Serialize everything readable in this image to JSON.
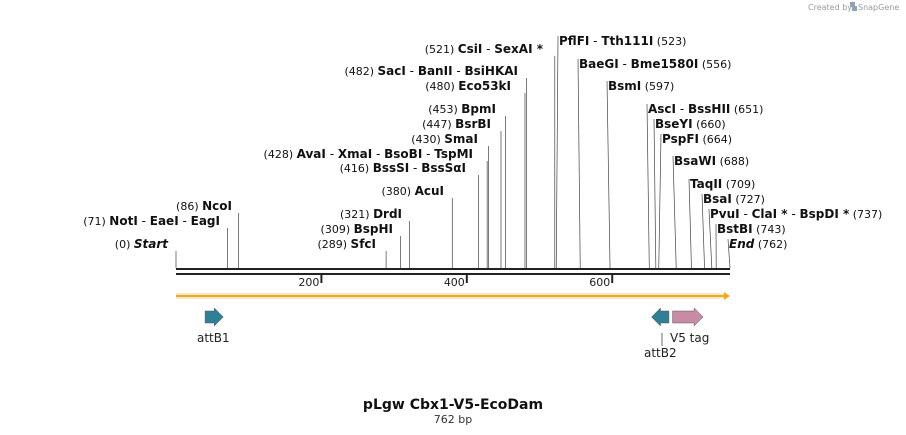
{
  "credit": {
    "text": "Created by",
    "brand": "SnapGene",
    "logo_icon": "snapgene-logo-icon",
    "logo_color": "#8fa3b5"
  },
  "sequence": {
    "length": 762,
    "title": "pLgw Cbx1-V5-EcoDam",
    "length_label": "762 bp"
  },
  "axis": {
    "ticks": [
      {
        "pos": 200,
        "label": "200"
      },
      {
        "pos": 400,
        "label": "400"
      },
      {
        "pos": 600,
        "label": "600"
      }
    ]
  },
  "colors": {
    "backbone": "#222222",
    "orf": "#f5a623",
    "orf_fill": "#fde9c4",
    "att": "#2f7f96",
    "tag": "#c88ba5",
    "line": "#444444"
  },
  "sites": [
    {
      "pos": 0,
      "names": [
        "Start"
      ],
      "pos_label": "(0)",
      "side": "left",
      "italic": true
    },
    {
      "pos": 71,
      "names": [
        "NotI",
        "EaeI",
        "EagI"
      ],
      "pos_label": "(71)",
      "side": "left"
    },
    {
      "pos": 86,
      "names": [
        "NcoI"
      ],
      "pos_label": "(86)",
      "side": "left"
    },
    {
      "pos": 289,
      "names": [
        "SfcI"
      ],
      "pos_label": "(289)",
      "side": "left"
    },
    {
      "pos": 309,
      "names": [
        "BspHI"
      ],
      "pos_label": "(309)",
      "side": "left"
    },
    {
      "pos": 321,
      "names": [
        "DrdI"
      ],
      "pos_label": "(321)",
      "side": "left"
    },
    {
      "pos": 380,
      "names": [
        "AcuI"
      ],
      "pos_label": "(380)",
      "side": "left"
    },
    {
      "pos": 416,
      "names": [
        "BssSI",
        "BssSαI"
      ],
      "pos_label": "(416)",
      "side": "left"
    },
    {
      "pos": 428,
      "names": [
        "AvaI",
        "XmaI",
        "BsoBI",
        "TspMI"
      ],
      "pos_label": "(428)",
      "side": "left"
    },
    {
      "pos": 430,
      "names": [
        "SmaI"
      ],
      "pos_label": "(430)",
      "side": "left"
    },
    {
      "pos": 447,
      "names": [
        "BsrBI"
      ],
      "pos_label": "(447)",
      "side": "left"
    },
    {
      "pos": 453,
      "names": [
        "BpmI"
      ],
      "pos_label": "(453)",
      "side": "left"
    },
    {
      "pos": 480,
      "names": [
        "Eco53kI"
      ],
      "pos_label": "(480)",
      "side": "left"
    },
    {
      "pos": 482,
      "names": [
        "SacI",
        "BanII",
        "BsiHKAI"
      ],
      "pos_label": "(482)",
      "side": "left"
    },
    {
      "pos": 521,
      "names": [
        "CsiI",
        "SexAI *"
      ],
      "pos_label": "(521)",
      "side": "left"
    },
    {
      "pos": 523,
      "names": [
        "PflFI",
        "Tth111I"
      ],
      "pos_label": "(523)",
      "side": "right"
    },
    {
      "pos": 556,
      "names": [
        "BaeGI",
        "Bme1580I"
      ],
      "pos_label": "(556)",
      "side": "right"
    },
    {
      "pos": 597,
      "names": [
        "BsmI"
      ],
      "pos_label": "(597)",
      "side": "right"
    },
    {
      "pos": 651,
      "names": [
        "AscI",
        "BssHII"
      ],
      "pos_label": "(651)",
      "side": "right"
    },
    {
      "pos": 660,
      "names": [
        "BseYI"
      ],
      "pos_label": "(660)",
      "side": "right"
    },
    {
      "pos": 664,
      "names": [
        "PspFI"
      ],
      "pos_label": "(664)",
      "side": "right"
    },
    {
      "pos": 688,
      "names": [
        "BsaWI"
      ],
      "pos_label": "(688)",
      "side": "right"
    },
    {
      "pos": 709,
      "names": [
        "TaqII"
      ],
      "pos_label": "(709)",
      "side": "right"
    },
    {
      "pos": 727,
      "names": [
        "BsaI"
      ],
      "pos_label": "(727)",
      "side": "right"
    },
    {
      "pos": 737,
      "names": [
        "PvuI",
        "ClaI *",
        "BspDI *"
      ],
      "pos_label": "(737)",
      "side": "right"
    },
    {
      "pos": 743,
      "names": [
        "BstBI"
      ],
      "pos_label": "(743)",
      "side": "right"
    },
    {
      "pos": 762,
      "names": [
        "End"
      ],
      "pos_label": "(762)",
      "side": "right",
      "italic": true
    }
  ],
  "features": [
    {
      "name": "attB1",
      "start": 40,
      "end": 65,
      "direction": "forward",
      "kind": "att"
    },
    {
      "name": "attB2",
      "start": 654,
      "end": 678,
      "direction": "reverse",
      "kind": "att"
    },
    {
      "name": "V5 tag",
      "start": 683,
      "end": 725,
      "direction": "forward",
      "kind": "tag"
    }
  ]
}
